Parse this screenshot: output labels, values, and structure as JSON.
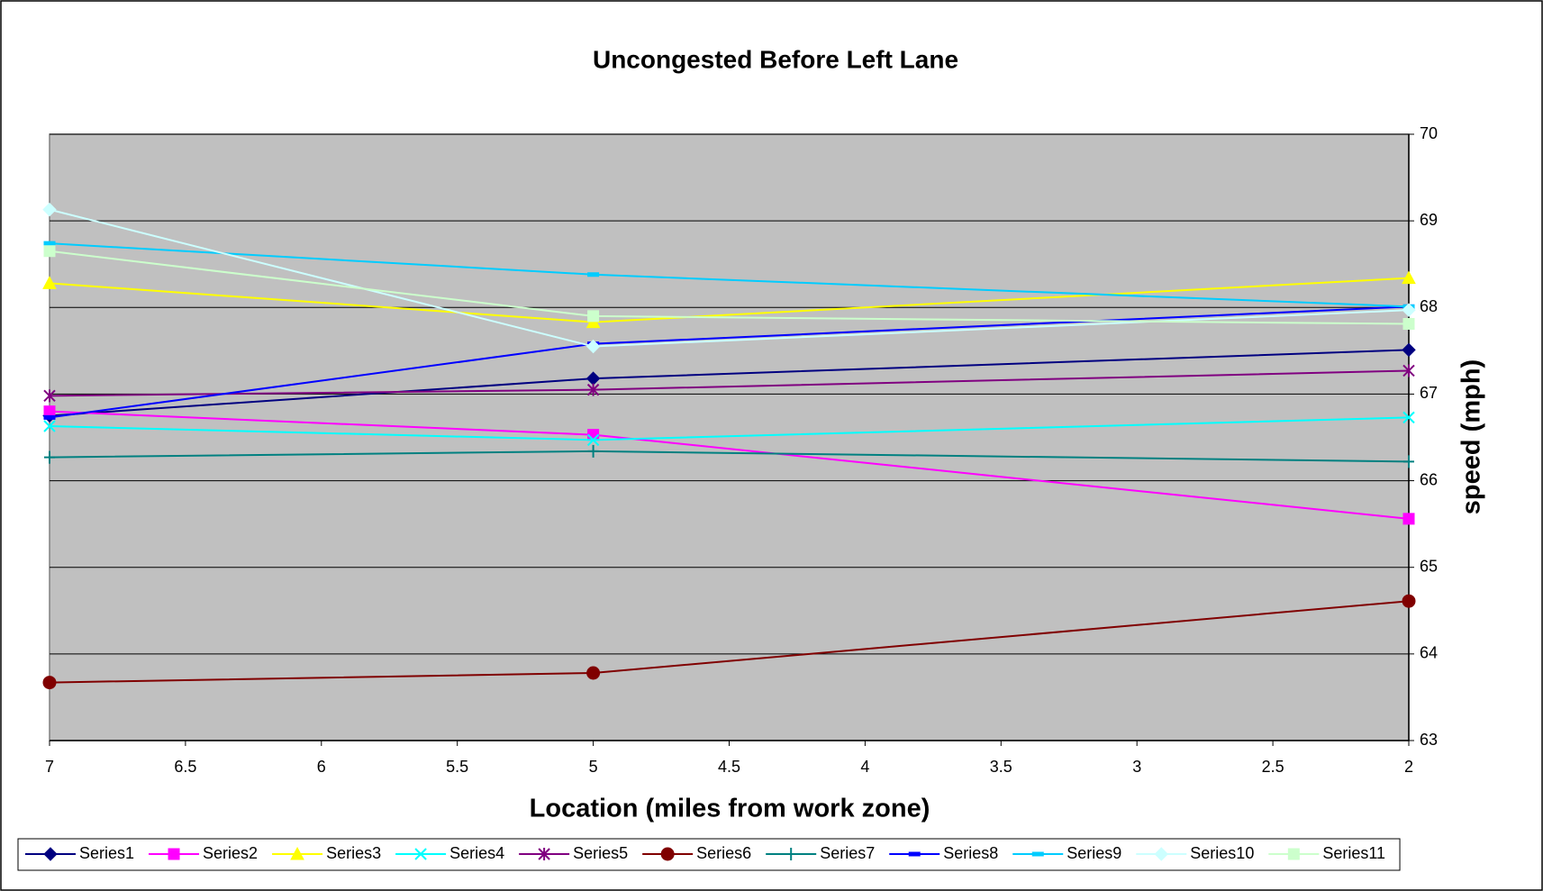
{
  "chart_data": {
    "type": "line",
    "title": "Uncongested Before Left Lane",
    "x_label": "Location (miles from work zone)",
    "y_label": "speed (mph)",
    "x": [
      7,
      5,
      2
    ],
    "xlim": [
      7,
      2
    ],
    "xticks": [
      7,
      6.5,
      6,
      5.5,
      5,
      4.5,
      4,
      3.5,
      3,
      2.5,
      2
    ],
    "ylim": [
      63,
      70
    ],
    "yticks": [
      63,
      64,
      65,
      66,
      67,
      68,
      69,
      70
    ],
    "grid": true,
    "y_axis_side": "right",
    "legend": "bottom",
    "plot_background": "#c0c0c0",
    "series": [
      {
        "name": "Series1",
        "color": "#000080",
        "marker": "diamond",
        "values": [
          66.75,
          67.18,
          67.51
        ]
      },
      {
        "name": "Series2",
        "color": "#ff00ff",
        "marker": "square",
        "values": [
          66.8,
          66.53,
          65.56
        ]
      },
      {
        "name": "Series3",
        "color": "#ffff00",
        "marker": "triangle",
        "values": [
          68.28,
          67.83,
          68.34
        ]
      },
      {
        "name": "Series4",
        "color": "#00ffff",
        "marker": "x",
        "values": [
          66.63,
          66.47,
          66.73
        ]
      },
      {
        "name": "Series5",
        "color": "#800080",
        "marker": "star",
        "values": [
          66.98,
          67.05,
          67.27
        ]
      },
      {
        "name": "Series6",
        "color": "#800000",
        "marker": "circle",
        "values": [
          63.67,
          63.78,
          64.61
        ]
      },
      {
        "name": "Series7",
        "color": "#008080",
        "marker": "plus",
        "values": [
          66.27,
          66.34,
          66.22
        ]
      },
      {
        "name": "Series8",
        "color": "#0000ff",
        "marker": "dash",
        "values": [
          66.73,
          67.58,
          68.01
        ]
      },
      {
        "name": "Series9",
        "color": "#00ccff",
        "marker": "dash",
        "values": [
          68.74,
          68.38,
          68.01
        ]
      },
      {
        "name": "Series10",
        "color": "#ccffff",
        "marker": "diamond",
        "values": [
          69.13,
          67.55,
          67.97
        ]
      },
      {
        "name": "Series11",
        "color": "#ccffcc",
        "marker": "square",
        "values": [
          68.65,
          67.9,
          67.81
        ]
      }
    ]
  }
}
